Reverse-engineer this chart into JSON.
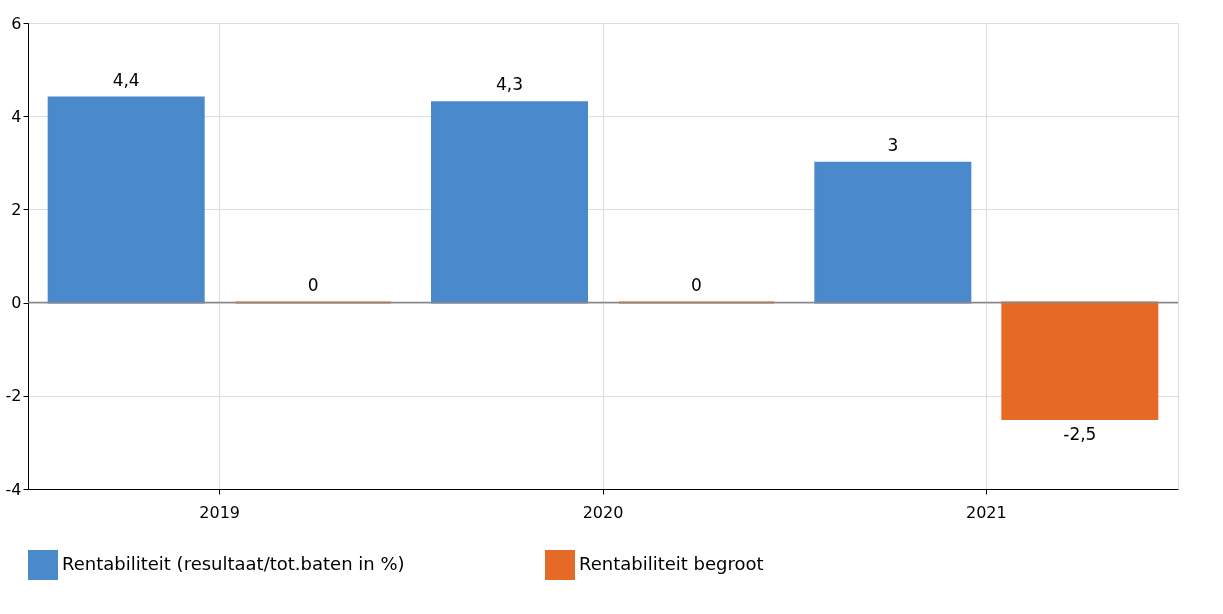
{
  "chart_data": {
    "type": "bar",
    "categories": [
      "2019",
      "2020",
      "2021"
    ],
    "series": [
      {
        "name": "Rentabiliteit (resultaat/tot.baten in %)",
        "color": "#4a89cb",
        "values": [
          4.4,
          4.3,
          3
        ],
        "value_labels": [
          "4,4",
          "4,3",
          "3"
        ]
      },
      {
        "name": "Rentabiliteit begroot",
        "color": "#e56a25",
        "values": [
          0,
          0,
          -2.5
        ],
        "value_labels": [
          "0",
          "0",
          "-2,5"
        ]
      }
    ],
    "ylim": [
      -4,
      6
    ],
    "yticks": [
      -4,
      -2,
      0,
      2,
      4,
      6
    ],
    "grid": true,
    "legend": "bottom left",
    "ref_lines": [
      {
        "axis": "y",
        "value": 0,
        "color": "#888888"
      }
    ]
  }
}
